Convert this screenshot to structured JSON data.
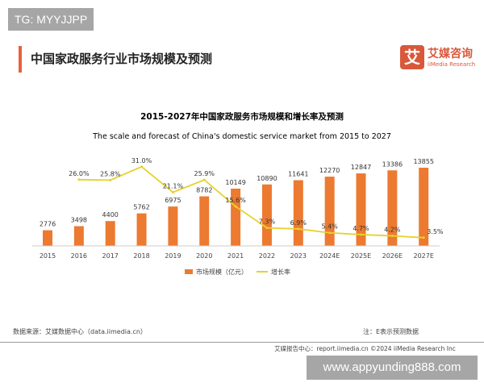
{
  "watermark_top": "TG: MYYJJPP",
  "watermark_bottom": "www.appyunding888.com",
  "page_title": "中国家政服务行业市场规模及预测",
  "brand": {
    "logo_char": "艾",
    "name": "艾媒咨询",
    "name_en": "iiMedia Research"
  },
  "source": "数据来源：艾媒数据中心（data.iimedia.cn）",
  "note": "注：E表示预测数据",
  "footer": "艾媒报告中心：report.iimedia.cn    ©2024  iiMedia Research  Inc",
  "chart_data": {
    "type": "bar+line",
    "title": "2015-2027年中国家政服务市场规模和增长率及预测",
    "subtitle": "The scale and forecast of China's domestic service market from 2015 to 2027",
    "categories": [
      "2015",
      "2016",
      "2017",
      "2018",
      "2019",
      "2020",
      "2021",
      "2022",
      "2023",
      "2024E",
      "2025E",
      "2026E",
      "2027E"
    ],
    "series": [
      {
        "name": "市场规模（亿元）",
        "type": "bar",
        "color": "#ec7a30",
        "values": [
          2776,
          3498,
          4400,
          5762,
          6975,
          8782,
          10149,
          10890,
          11641,
          12270,
          12847,
          13386,
          13855
        ]
      },
      {
        "name": "增长率",
        "type": "line",
        "color": "#e6d22c",
        "values": [
          null,
          26.0,
          25.8,
          31.0,
          21.1,
          25.9,
          15.6,
          7.3,
          6.9,
          5.4,
          4.7,
          4.2,
          3.5
        ]
      }
    ],
    "legend": "bottom"
  }
}
